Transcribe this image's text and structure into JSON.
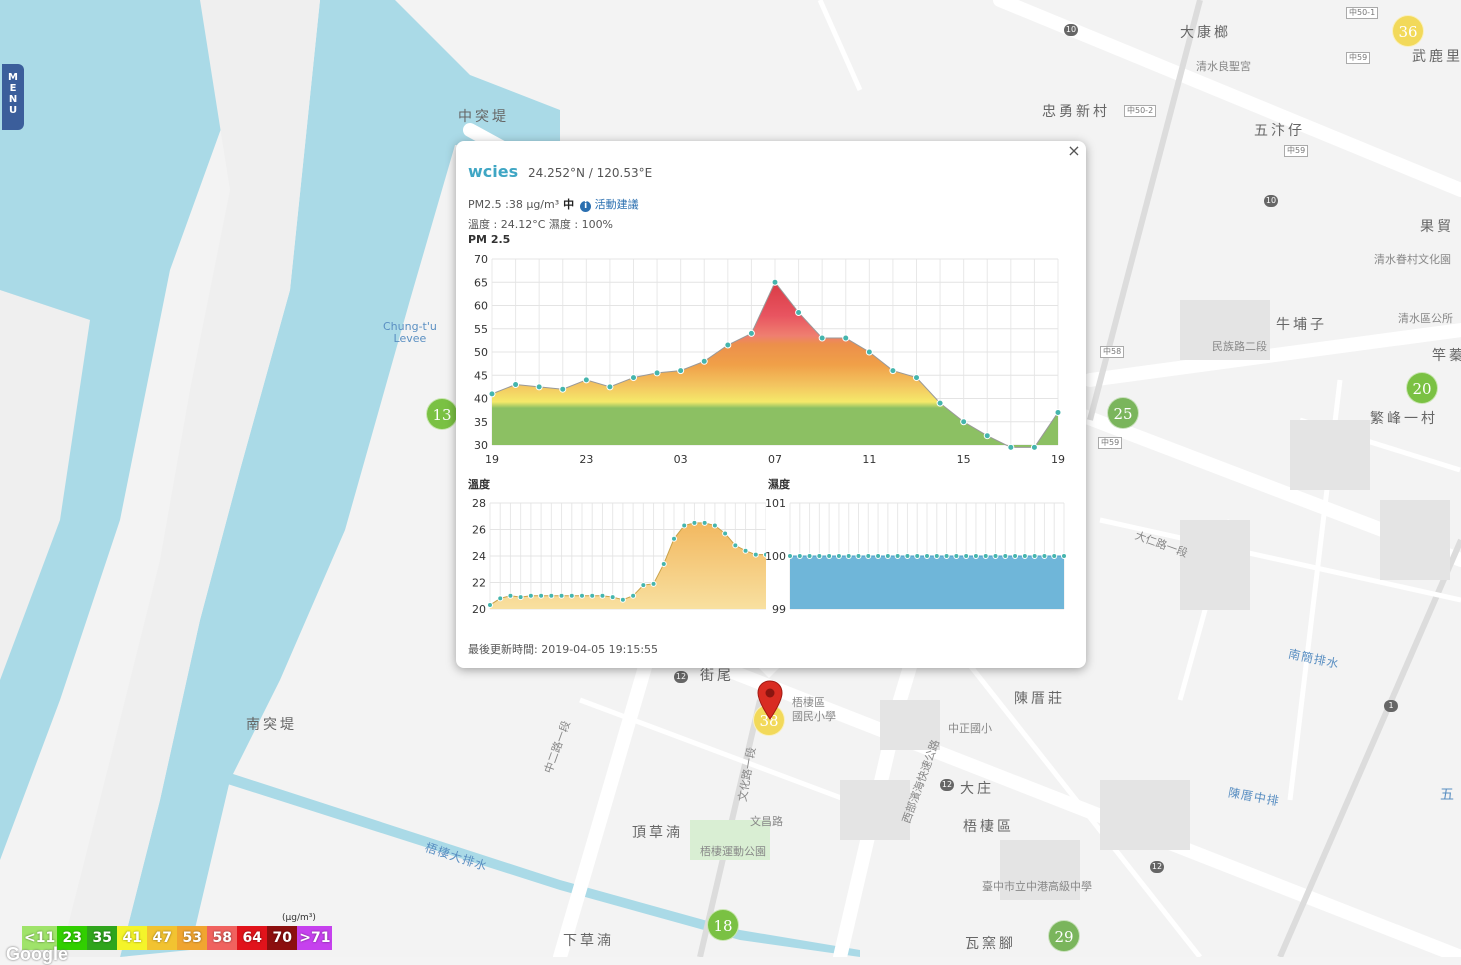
{
  "menu": {
    "letters": [
      "M",
      "E",
      "N",
      "U"
    ]
  },
  "map": {
    "places": [
      {
        "id": "zhongtudi",
        "text": "中突堤"
      },
      {
        "id": "nantudi",
        "text": "南突堤"
      },
      {
        "id": "dakang",
        "text": "大康榔"
      },
      {
        "id": "zhongyong",
        "text": "忠勇新村"
      },
      {
        "id": "wuchazi",
        "text": "五汴仔"
      },
      {
        "id": "guomao",
        "text": "果貿"
      },
      {
        "id": "niupuzi",
        "text": "牛埔子"
      },
      {
        "id": "fanfeng",
        "text": "繁峰一村"
      },
      {
        "id": "chenlaizhuang",
        "text": "陳厝莊"
      },
      {
        "id": "dazhuang",
        "text": "大庄"
      },
      {
        "id": "wuqiqu",
        "text": "梧棲區"
      },
      {
        "id": "dingcaopu",
        "text": "頂草湳"
      },
      {
        "id": "xiacaopu",
        "text": "下草湳"
      },
      {
        "id": "wayaojiao",
        "text": "瓦窯腳"
      },
      {
        "id": "jiewei",
        "text": "街尾"
      },
      {
        "id": "wuqi",
        "text": "武鹿里"
      },
      {
        "id": "zhuoshu",
        "text": "竿蓁"
      }
    ],
    "small_labels": [
      {
        "id": "chungtu",
        "text": "Chung-t'u\nLevee"
      },
      {
        "id": "qingshui",
        "text": "清水良聖宮"
      },
      {
        "id": "culture",
        "text": "清水眷村文化園"
      },
      {
        "id": "office",
        "text": "清水區公所"
      },
      {
        "id": "park",
        "text": "梧棲運動公園"
      },
      {
        "id": "school",
        "text": "梧棲區\n國民小學"
      },
      {
        "id": "zhongzheng",
        "text": "中正國小"
      },
      {
        "id": "highschool",
        "text": "臺中市立中港高級中學"
      },
      {
        "id": "expressway",
        "text": "西部濱海快速公路"
      },
      {
        "id": "drain1",
        "text": "梧棲大排水"
      },
      {
        "id": "drain2",
        "text": "南簡排水"
      },
      {
        "id": "drain3",
        "text": "陳厝中排"
      },
      {
        "id": "minzu",
        "text": "民族路二段"
      },
      {
        "id": "daren",
        "text": "大仁路一段"
      },
      {
        "id": "wenhua",
        "text": "文化路一段"
      },
      {
        "id": "zhonger",
        "text": "中二路一段"
      },
      {
        "id": "wuhua",
        "text": "文昌路"
      },
      {
        "id": "wu2",
        "text": "五"
      }
    ],
    "road_badges": [
      {
        "id": "b1",
        "text": "中50-1"
      },
      {
        "id": "b2",
        "text": "中59"
      },
      {
        "id": "b3",
        "text": "中50-2"
      },
      {
        "id": "b4",
        "text": "中59"
      },
      {
        "id": "b5",
        "text": "中58"
      },
      {
        "id": "b6",
        "text": "中59"
      }
    ],
    "highway_badges": [
      {
        "id": "h1",
        "text": "10"
      },
      {
        "id": "h2",
        "text": "10"
      },
      {
        "id": "h3",
        "text": "12"
      },
      {
        "id": "h4",
        "text": "12"
      },
      {
        "id": "h5",
        "text": "12"
      },
      {
        "id": "h6",
        "text": "1"
      }
    ],
    "markers": [
      {
        "id": "m36",
        "value": "36",
        "color": "#f2d95a"
      },
      {
        "id": "m20",
        "value": "20",
        "color": "#7ac143"
      },
      {
        "id": "m25",
        "value": "25",
        "color": "#7ab55c"
      },
      {
        "id": "m13",
        "value": "13",
        "color": "#7ac143"
      },
      {
        "id": "m38",
        "value": "38",
        "color": "#f2d95a"
      },
      {
        "id": "m18",
        "value": "18",
        "color": "#7ac143"
      },
      {
        "id": "m29",
        "value": "29",
        "color": "#7ab55c"
      }
    ]
  },
  "popup": {
    "device": "wcies",
    "coords": "24.252°N / 120.53°E",
    "pm_text": "PM2.5 :38 μg/m³",
    "level": "中",
    "info_icon": "i",
    "advice": "活動建議",
    "temp_humidity": "溫度 : 24.12°C  濕度 : 100%",
    "close": "×",
    "updated": "最後更新時間: 2019-04-05 19:15:55"
  },
  "chart_data": [
    {
      "type": "area",
      "title": "PM 2.5",
      "x_ticks": [
        "19",
        "23",
        "03",
        "07",
        "11",
        "15",
        "19"
      ],
      "y_ticks": [
        30,
        35,
        40,
        45,
        50,
        55,
        60,
        65,
        70
      ],
      "ylim": [
        30,
        70
      ],
      "values": [
        41,
        43,
        42.5,
        42,
        44,
        42.5,
        44.5,
        45.5,
        46,
        48,
        51.5,
        54,
        65,
        58.5,
        53,
        53,
        50,
        46,
        44.5,
        39,
        35,
        32,
        29.5,
        29.5,
        37
      ],
      "fill": "gradient by PM2.5 level",
      "grid": true
    },
    {
      "type": "area",
      "title": "溫度",
      "y_ticks": [
        20,
        22,
        24,
        26,
        28
      ],
      "ylim": [
        20,
        28
      ],
      "values": [
        20.3,
        20.8,
        21,
        20.9,
        21,
        21,
        21,
        21,
        21,
        21,
        21,
        21,
        20.9,
        20.7,
        21,
        21.8,
        21.9,
        23.4,
        25.3,
        26.3,
        26.5,
        26.5,
        26.3,
        25.7,
        24.8,
        24.4,
        24.1,
        24.1
      ],
      "color": "#f3c96b",
      "grid": true
    },
    {
      "type": "area",
      "title": "濕度",
      "y_ticks": [
        99,
        100,
        101
      ],
      "ylim": [
        99,
        101
      ],
      "values": [
        100,
        100,
        100,
        100,
        100,
        100,
        100,
        100,
        100,
        100,
        100,
        100,
        100,
        100,
        100,
        100,
        100,
        100,
        100,
        100,
        100,
        100,
        100,
        100,
        100,
        100,
        100,
        100,
        100
      ],
      "color": "#6fb6d9",
      "grid": true
    }
  ],
  "legend": {
    "unit": "(μg/m³)",
    "cells": [
      {
        "label": "<11",
        "color": "#9fe36a"
      },
      {
        "label": "23",
        "color": "#31cf00"
      },
      {
        "label": "35",
        "color": "#2fa51c"
      },
      {
        "label": "41",
        "color": "#f4f42a"
      },
      {
        "label": "47",
        "color": "#f2c331"
      },
      {
        "label": "53",
        "color": "#f0a530"
      },
      {
        "label": "58",
        "color": "#f0625f"
      },
      {
        "label": "64",
        "color": "#e1131b"
      },
      {
        "label": "70",
        "color": "#8c0f0f"
      },
      {
        "label": ">71",
        "color": "#c641ee"
      }
    ]
  },
  "attribution": "Google"
}
